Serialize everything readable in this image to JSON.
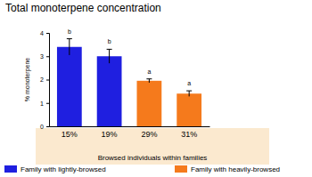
{
  "chart_data": {
    "type": "bar",
    "title": "Total monoterpene concentration",
    "x_label": "Browsed individuals within families",
    "y_label": "% monoterpene",
    "categories": [
      "15%",
      "19%",
      "29%",
      "31%"
    ],
    "series": [
      {
        "name": "Family with lightly-browsed",
        "color": "#1f1fe0",
        "values": [
          3.4,
          3.0,
          null,
          null
        ],
        "errors": [
          0.35,
          0.3,
          null,
          null
        ]
      },
      {
        "name": "Family with heavily-browsed",
        "color": "#f57a1c",
        "values": [
          null,
          null,
          1.95,
          1.4
        ],
        "errors": [
          null,
          null,
          0.08,
          0.12
        ]
      }
    ],
    "annotations": [
      "b",
      "b",
      "a",
      "a"
    ],
    "ylim": [
      0,
      4
    ],
    "yticks": [
      0,
      1,
      2,
      3,
      4
    ],
    "grid": false,
    "legend": "bottom"
  }
}
